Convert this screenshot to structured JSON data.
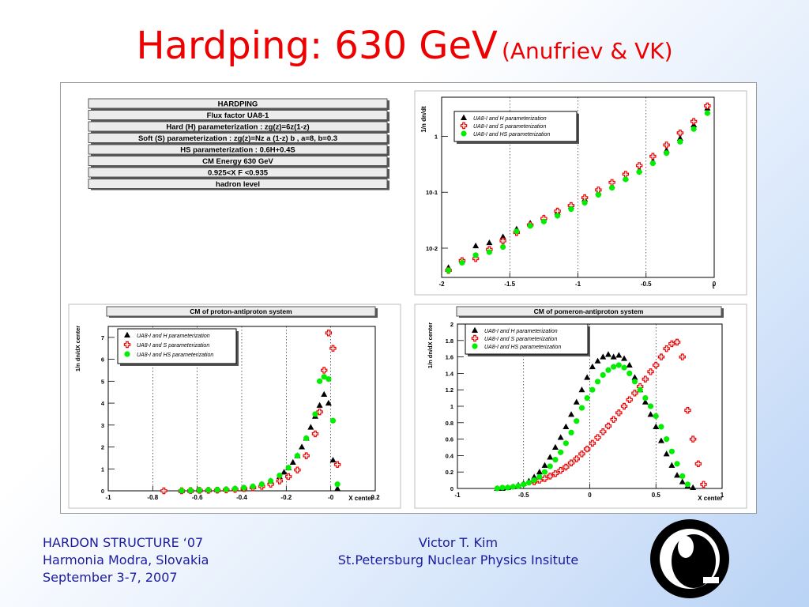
{
  "slide": {
    "title_main": "Hardping: 630 GeV",
    "title_sub": "(Anufriev & VK)",
    "footer_left": [
      "HARDON STRUCTURE ‘07",
      "Harmonia Modra, Slovakia",
      "September 3-7, 2007"
    ],
    "footer_center": [
      "Victor T.  Kim",
      "St.Petersburg Nuclear Physics Insitute"
    ],
    "logo_icon": "pnpi-logo-icon"
  },
  "info_boxes": [
    "HARDPING",
    "Flux factor UA8-1",
    "Hard (H) parameterization : zg(z)=6z(1-z)",
    "Soft (S) parameterization : zg(z)=Nz   a (1-z)  b  , a=8, b=0.3",
    "HS parameterization : 0.6H+0.4S",
    "CM Energy 630 GeV",
    "0.925<X F <0.935",
    "hadron level"
  ],
  "legend_entries": [
    "UA8-I and H parameterization",
    "UA8-I and S parameterization",
    "UA8-I and HS parameterization"
  ],
  "colors": {
    "title": "#ee0000",
    "footer": "#1a1aa0",
    "H": "#000000",
    "S": "#ee0000",
    "HS": "#00ee00"
  },
  "chart_data": [
    {
      "type": "scatter",
      "panel": "t-distribution",
      "title": "",
      "xlabel": "t",
      "ylabel": "1/n dn/dt",
      "ylog": true,
      "xlim": [
        -2,
        0
      ],
      "ylim": [
        0.003,
        5
      ],
      "xticks": [
        -2,
        -1.5,
        -1,
        -0.5,
        0
      ],
      "xtick_labels": [
        "-2",
        "-1.5",
        "-1",
        "-0.5",
        "0"
      ],
      "yticks": [
        0.01,
        0.1,
        1
      ],
      "ytick_labels": [
        "10-2",
        "10-1",
        "1"
      ],
      "x": [
        -1.95,
        -1.85,
        -1.75,
        -1.65,
        -1.55,
        -1.45,
        -1.35,
        -1.25,
        -1.15,
        -1.05,
        -0.95,
        -0.85,
        -0.75,
        -0.65,
        -0.55,
        -0.45,
        -0.35,
        -0.25,
        -0.15,
        -0.05
      ],
      "series": [
        {
          "name": "UA8-I and H parameterization",
          "marker": "triangle",
          "values": [
            0.0045,
            0.006,
            0.011,
            0.0125,
            0.016,
            0.022,
            0.028,
            0.035,
            0.044,
            0.056,
            0.075,
            0.1,
            0.13,
            0.18,
            0.25,
            0.36,
            0.56,
            0.92,
            1.6,
            3.2
          ]
        },
        {
          "name": "UA8-I and S parameterization",
          "marker": "open-cross",
          "values": [
            0.004,
            0.006,
            0.0065,
            0.0095,
            0.0135,
            0.019,
            0.026,
            0.034,
            0.046,
            0.058,
            0.08,
            0.11,
            0.15,
            0.21,
            0.3,
            0.44,
            0.7,
            1.15,
            1.85,
            3.5
          ]
        },
        {
          "name": "UA8-I and HS parameterization",
          "marker": "filled-circle",
          "values": [
            0.004,
            0.0055,
            0.0075,
            0.0085,
            0.0105,
            0.02,
            0.025,
            0.03,
            0.038,
            0.05,
            0.065,
            0.09,
            0.12,
            0.17,
            0.23,
            0.33,
            0.5,
            0.8,
            1.35,
            2.6
          ]
        }
      ]
    },
    {
      "type": "scatter",
      "panel": "proton-antiproton",
      "title": "CM of proton-antiproton system",
      "xlabel": "X center",
      "ylabel": "1/n dn/dX center",
      "xlim": [
        -1,
        0.2
      ],
      "ylim": [
        0,
        7.5
      ],
      "xticks": [
        -1,
        -0.8,
        -0.6,
        -0.4,
        -0.2,
        0,
        0.2
      ],
      "xtick_labels": [
        "-1",
        "-0.8",
        "-0.6",
        "-0.4",
        "-0.2",
        "-0",
        "0.2"
      ],
      "yticks": [
        0,
        1,
        2,
        3,
        4,
        5,
        6,
        7
      ],
      "ytick_labels": [
        "0",
        "1",
        "2",
        "3",
        "4",
        "5",
        "6",
        "7"
      ],
      "series": [
        {
          "name": "UA8-I and H parameterization",
          "marker": "triangle",
          "x": [
            -0.67,
            -0.63,
            -0.59,
            -0.55,
            -0.51,
            -0.47,
            -0.43,
            -0.39,
            -0.35,
            -0.31,
            -0.27,
            -0.23,
            -0.21,
            -0.19,
            -0.17,
            -0.15,
            -0.13,
            -0.11,
            -0.09,
            -0.07,
            -0.05,
            -0.03,
            -0.01,
            0.01,
            0.03
          ],
          "values": [
            0.01,
            0.02,
            0.03,
            0.04,
            0.05,
            0.07,
            0.1,
            0.14,
            0.2,
            0.3,
            0.45,
            0.65,
            0.85,
            1.05,
            1.3,
            1.6,
            2.0,
            2.4,
            2.9,
            3.4,
            3.9,
            4.4,
            4.0,
            1.4,
            0.1
          ]
        },
        {
          "name": "UA8-I and S parameterization",
          "marker": "open-cross",
          "x": [
            -0.75,
            -0.67,
            -0.63,
            -0.59,
            -0.55,
            -0.51,
            -0.47,
            -0.43,
            -0.39,
            -0.35,
            -0.31,
            -0.27,
            -0.23,
            -0.19,
            -0.15,
            -0.11,
            -0.07,
            -0.05,
            -0.03,
            -0.01,
            0.01,
            0.03
          ],
          "values": [
            0.0,
            0.0,
            0.01,
            0.02,
            0.02,
            0.03,
            0.04,
            0.06,
            0.1,
            0.14,
            0.2,
            0.3,
            0.45,
            0.65,
            0.95,
            1.6,
            2.6,
            3.6,
            5.5,
            7.2,
            6.5,
            1.2
          ]
        },
        {
          "name": "UA8-I and HS parameterization",
          "marker": "filled-circle",
          "x": [
            -0.67,
            -0.63,
            -0.59,
            -0.55,
            -0.51,
            -0.47,
            -0.43,
            -0.39,
            -0.35,
            -0.31,
            -0.27,
            -0.23,
            -0.19,
            -0.15,
            -0.11,
            -0.07,
            -0.05,
            -0.03,
            -0.01,
            0.01,
            0.03
          ],
          "values": [
            0.01,
            0.02,
            0.03,
            0.04,
            0.05,
            0.07,
            0.1,
            0.14,
            0.2,
            0.3,
            0.45,
            0.7,
            1.05,
            1.6,
            2.4,
            3.5,
            5.0,
            5.2,
            5.1,
            3.2,
            0.3
          ]
        }
      ]
    },
    {
      "type": "scatter",
      "panel": "pomeron-antiproton",
      "title": "CM of pomeron-antiproton system",
      "xlabel": "X center",
      "ylabel": "1/n dn/dX center",
      "xlim": [
        -1,
        1
      ],
      "ylim": [
        0,
        2
      ],
      "xticks": [
        -1,
        -0.5,
        0,
        0.5,
        1
      ],
      "xtick_labels": [
        "-1",
        "-0.5",
        "0",
        "0.5",
        "1"
      ],
      "yticks": [
        0,
        0.2,
        0.4,
        0.6,
        0.8,
        1,
        1.2,
        1.4,
        1.6,
        1.8,
        2
      ],
      "ytick_labels": [
        "0",
        "0.2",
        "0.4",
        "0.6",
        "0.8",
        "1",
        "1.2",
        "1.4",
        "1.6",
        "1.8",
        "2"
      ],
      "series": [
        {
          "name": "UA8-I and H parameterization",
          "marker": "triangle",
          "x": [
            -0.7,
            -0.66,
            -0.62,
            -0.58,
            -0.54,
            -0.5,
            -0.46,
            -0.42,
            -0.38,
            -0.34,
            -0.3,
            -0.26,
            -0.22,
            -0.18,
            -0.14,
            -0.1,
            -0.06,
            -0.02,
            0.02,
            0.06,
            0.1,
            0.14,
            0.18,
            0.22,
            0.26,
            0.3,
            0.34,
            0.38,
            0.42,
            0.46,
            0.5,
            0.54,
            0.58,
            0.62,
            0.66,
            0.7,
            0.74,
            0.78
          ],
          "values": [
            0.0,
            0.0,
            0.01,
            0.02,
            0.04,
            0.06,
            0.09,
            0.14,
            0.2,
            0.28,
            0.38,
            0.5,
            0.62,
            0.75,
            0.9,
            1.05,
            1.2,
            1.35,
            1.48,
            1.55,
            1.6,
            1.63,
            1.6,
            1.62,
            1.58,
            1.5,
            1.35,
            1.2,
            1.05,
            0.9,
            0.75,
            0.58,
            0.42,
            0.28,
            0.16,
            0.08,
            0.03,
            0.01
          ]
        },
        {
          "name": "UA8-I and S parameterization",
          "marker": "open-cross",
          "x": [
            -0.42,
            -0.38,
            -0.34,
            -0.3,
            -0.26,
            -0.22,
            -0.18,
            -0.14,
            -0.1,
            -0.06,
            -0.02,
            0.02,
            0.06,
            0.1,
            0.14,
            0.18,
            0.22,
            0.26,
            0.3,
            0.34,
            0.38,
            0.42,
            0.46,
            0.5,
            0.54,
            0.58,
            0.62,
            0.66,
            0.7,
            0.74,
            0.78,
            0.82,
            0.86
          ],
          "values": [
            0.08,
            0.1,
            0.12,
            0.15,
            0.18,
            0.22,
            0.26,
            0.31,
            0.36,
            0.42,
            0.48,
            0.55,
            0.62,
            0.69,
            0.76,
            0.84,
            0.92,
            1.0,
            1.08,
            1.16,
            1.24,
            1.33,
            1.42,
            1.5,
            1.6,
            1.7,
            1.76,
            1.78,
            1.6,
            0.95,
            0.6,
            0.3,
            0.05
          ]
        },
        {
          "name": "UA8-I and HS parameterization",
          "marker": "filled-circle",
          "x": [
            -0.7,
            -0.66,
            -0.62,
            -0.58,
            -0.54,
            -0.5,
            -0.46,
            -0.42,
            -0.38,
            -0.34,
            -0.3,
            -0.26,
            -0.22,
            -0.18,
            -0.14,
            -0.1,
            -0.06,
            -0.02,
            0.02,
            0.06,
            0.1,
            0.14,
            0.18,
            0.22,
            0.26,
            0.3,
            0.34,
            0.38,
            0.42,
            0.46,
            0.5,
            0.54,
            0.58,
            0.62,
            0.66,
            0.7,
            0.74
          ],
          "values": [
            0.0,
            0.01,
            0.01,
            0.02,
            0.03,
            0.05,
            0.07,
            0.1,
            0.14,
            0.2,
            0.27,
            0.35,
            0.44,
            0.55,
            0.68,
            0.82,
            0.98,
            1.1,
            1.2,
            1.3,
            1.38,
            1.44,
            1.48,
            1.5,
            1.47,
            1.4,
            1.3,
            1.2,
            1.1,
            1.0,
            0.88,
            0.75,
            0.6,
            0.45,
            0.3,
            0.15,
            0.05
          ]
        }
      ]
    }
  ]
}
